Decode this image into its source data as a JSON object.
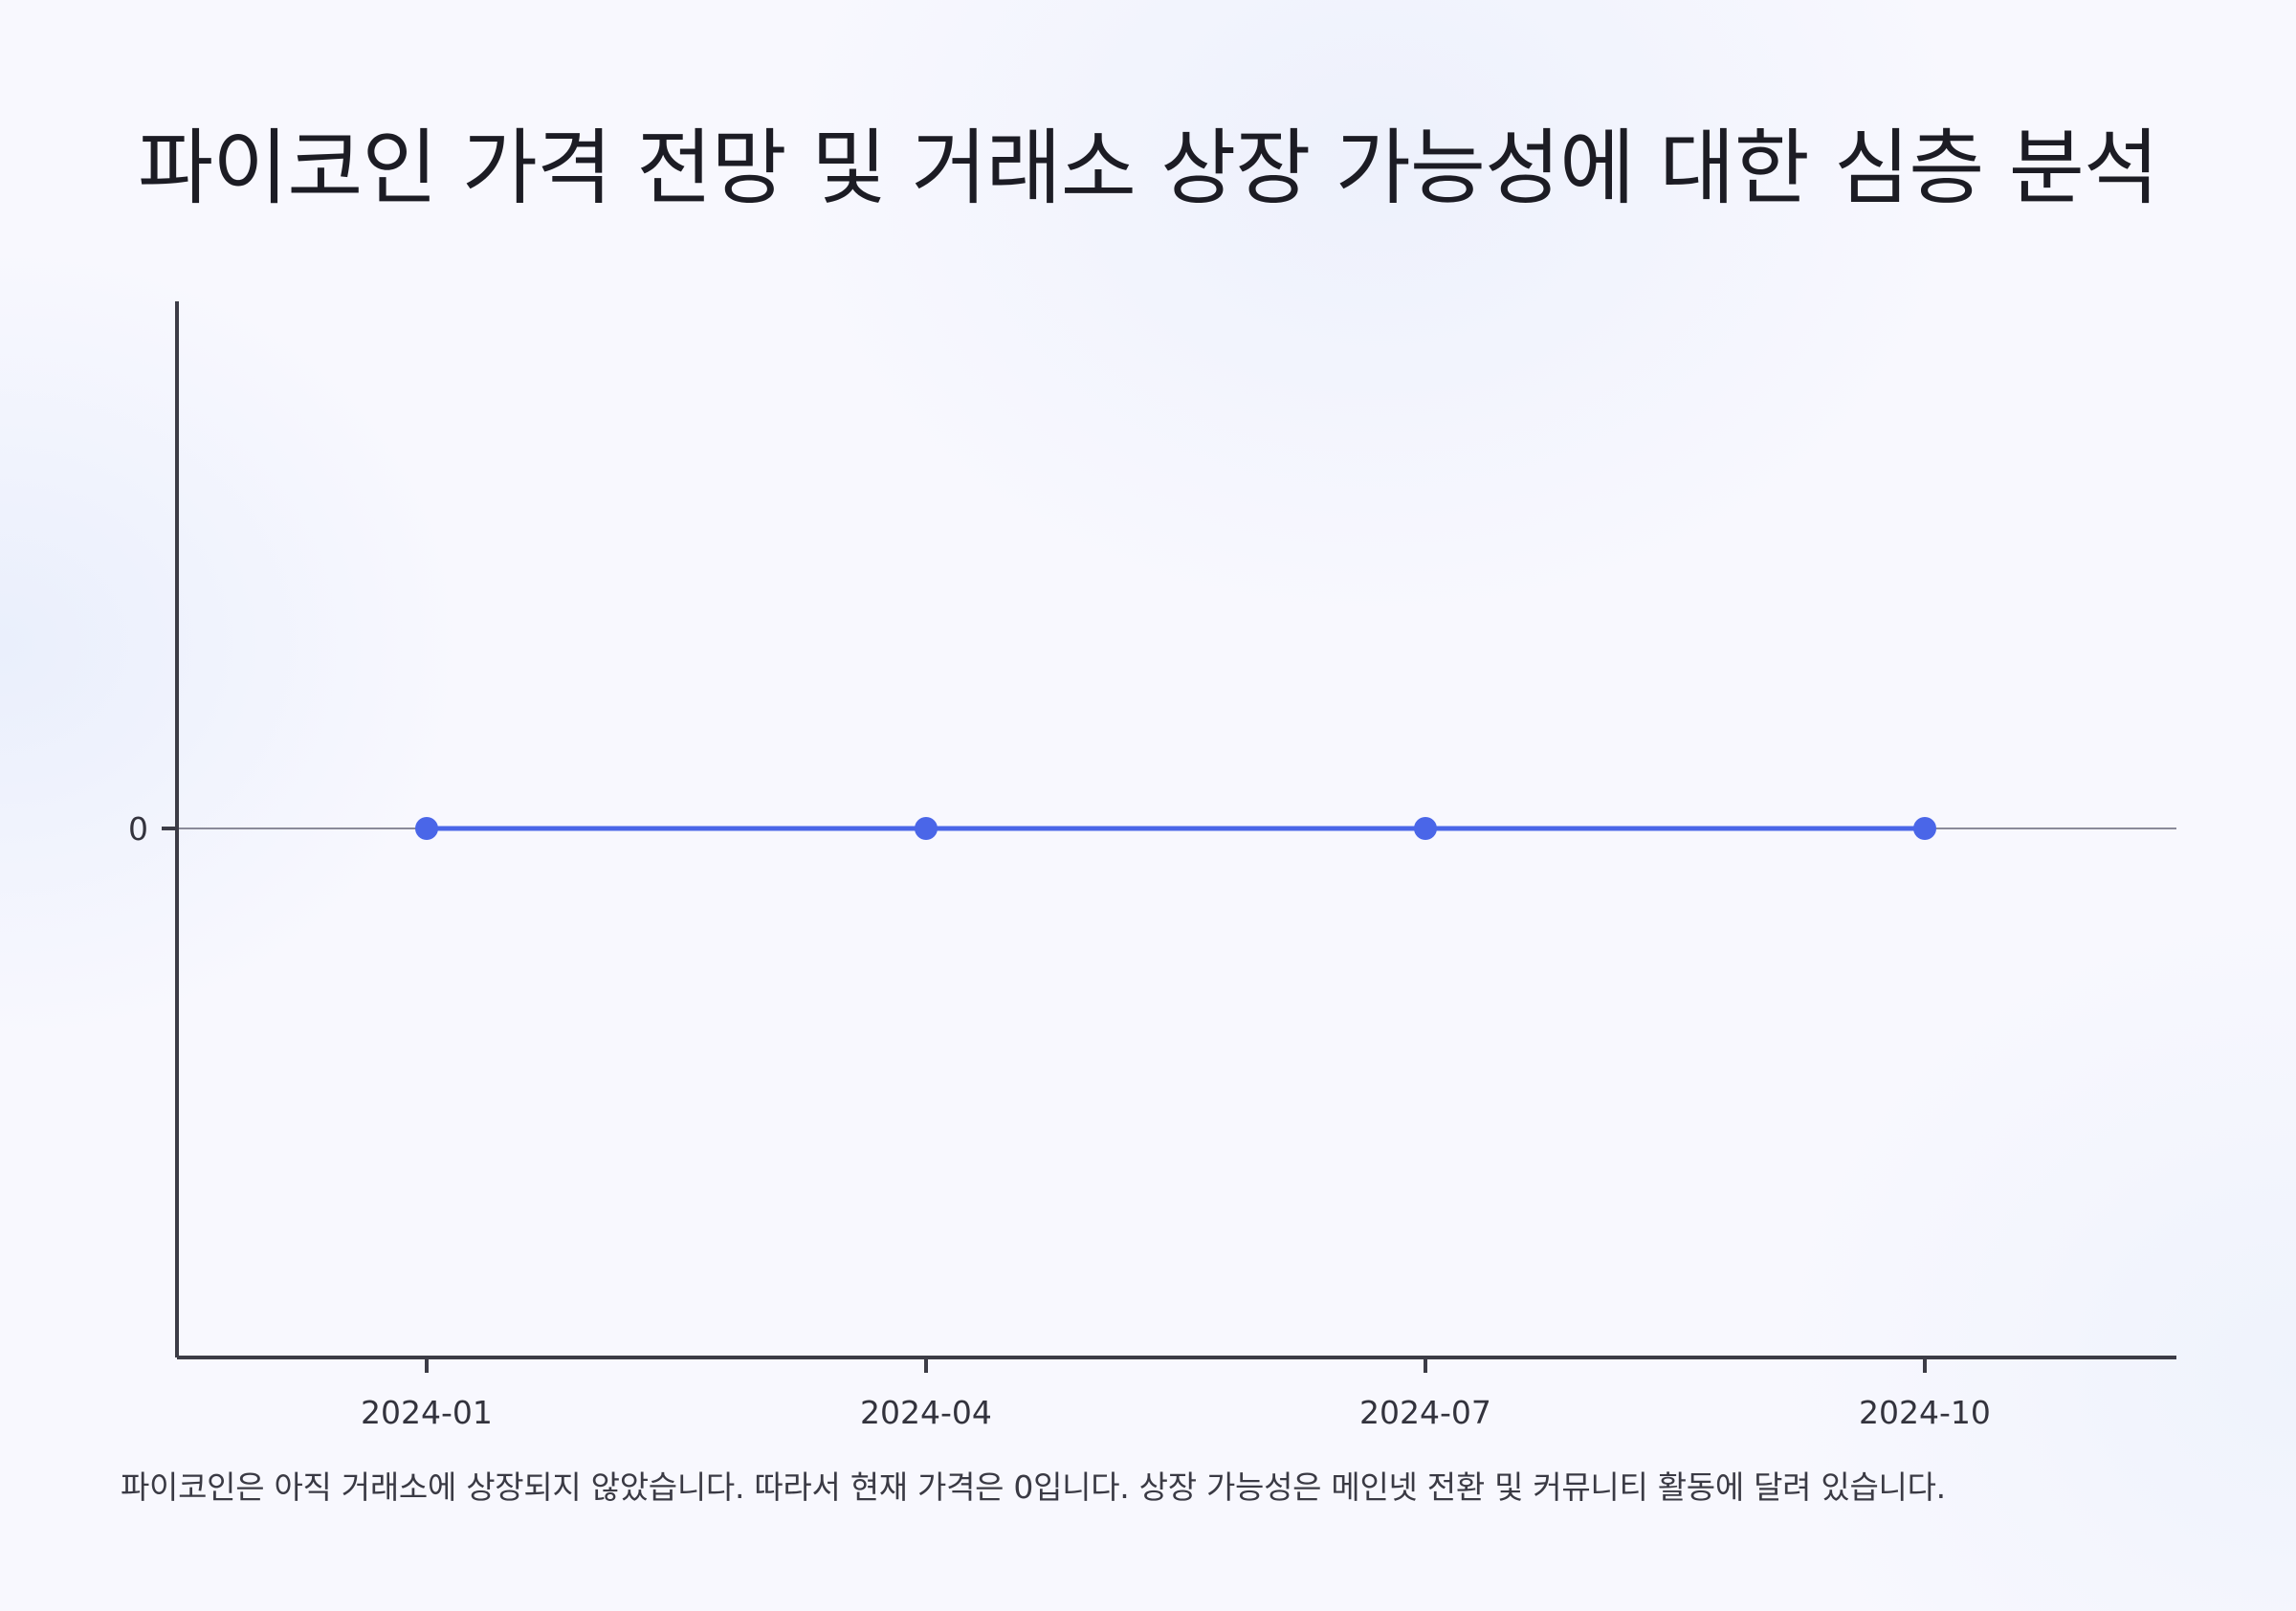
{
  "title": "파이코인 가격 전망 및 거래소 상장 가능성에 대한 심층 분석",
  "caption": "파이코인은 아직 거래소에 상장되지 않았습니다. 따라서 현재 가격은 0입니다. 상장 가능성은 메인넷 전환 및 커뮤니티 활동에 달려 있습니다.",
  "colors": {
    "line": "#4a66e8",
    "axis": "#3c3c46",
    "zero_line": "#8a8a99"
  },
  "chart_data": {
    "type": "line",
    "title": "파이코인 가격 전망 및 거래소 상장 가능성에 대한 심층 분석",
    "xlabel": "",
    "ylabel": "",
    "x": [
      "2024-01",
      "2024-04",
      "2024-07",
      "2024-10"
    ],
    "series": [
      {
        "values": [
          0,
          0,
          0,
          0
        ]
      }
    ],
    "y_ticks": [
      "0"
    ],
    "ylim": [
      -1,
      1
    ],
    "grid": false,
    "legend": "none"
  }
}
